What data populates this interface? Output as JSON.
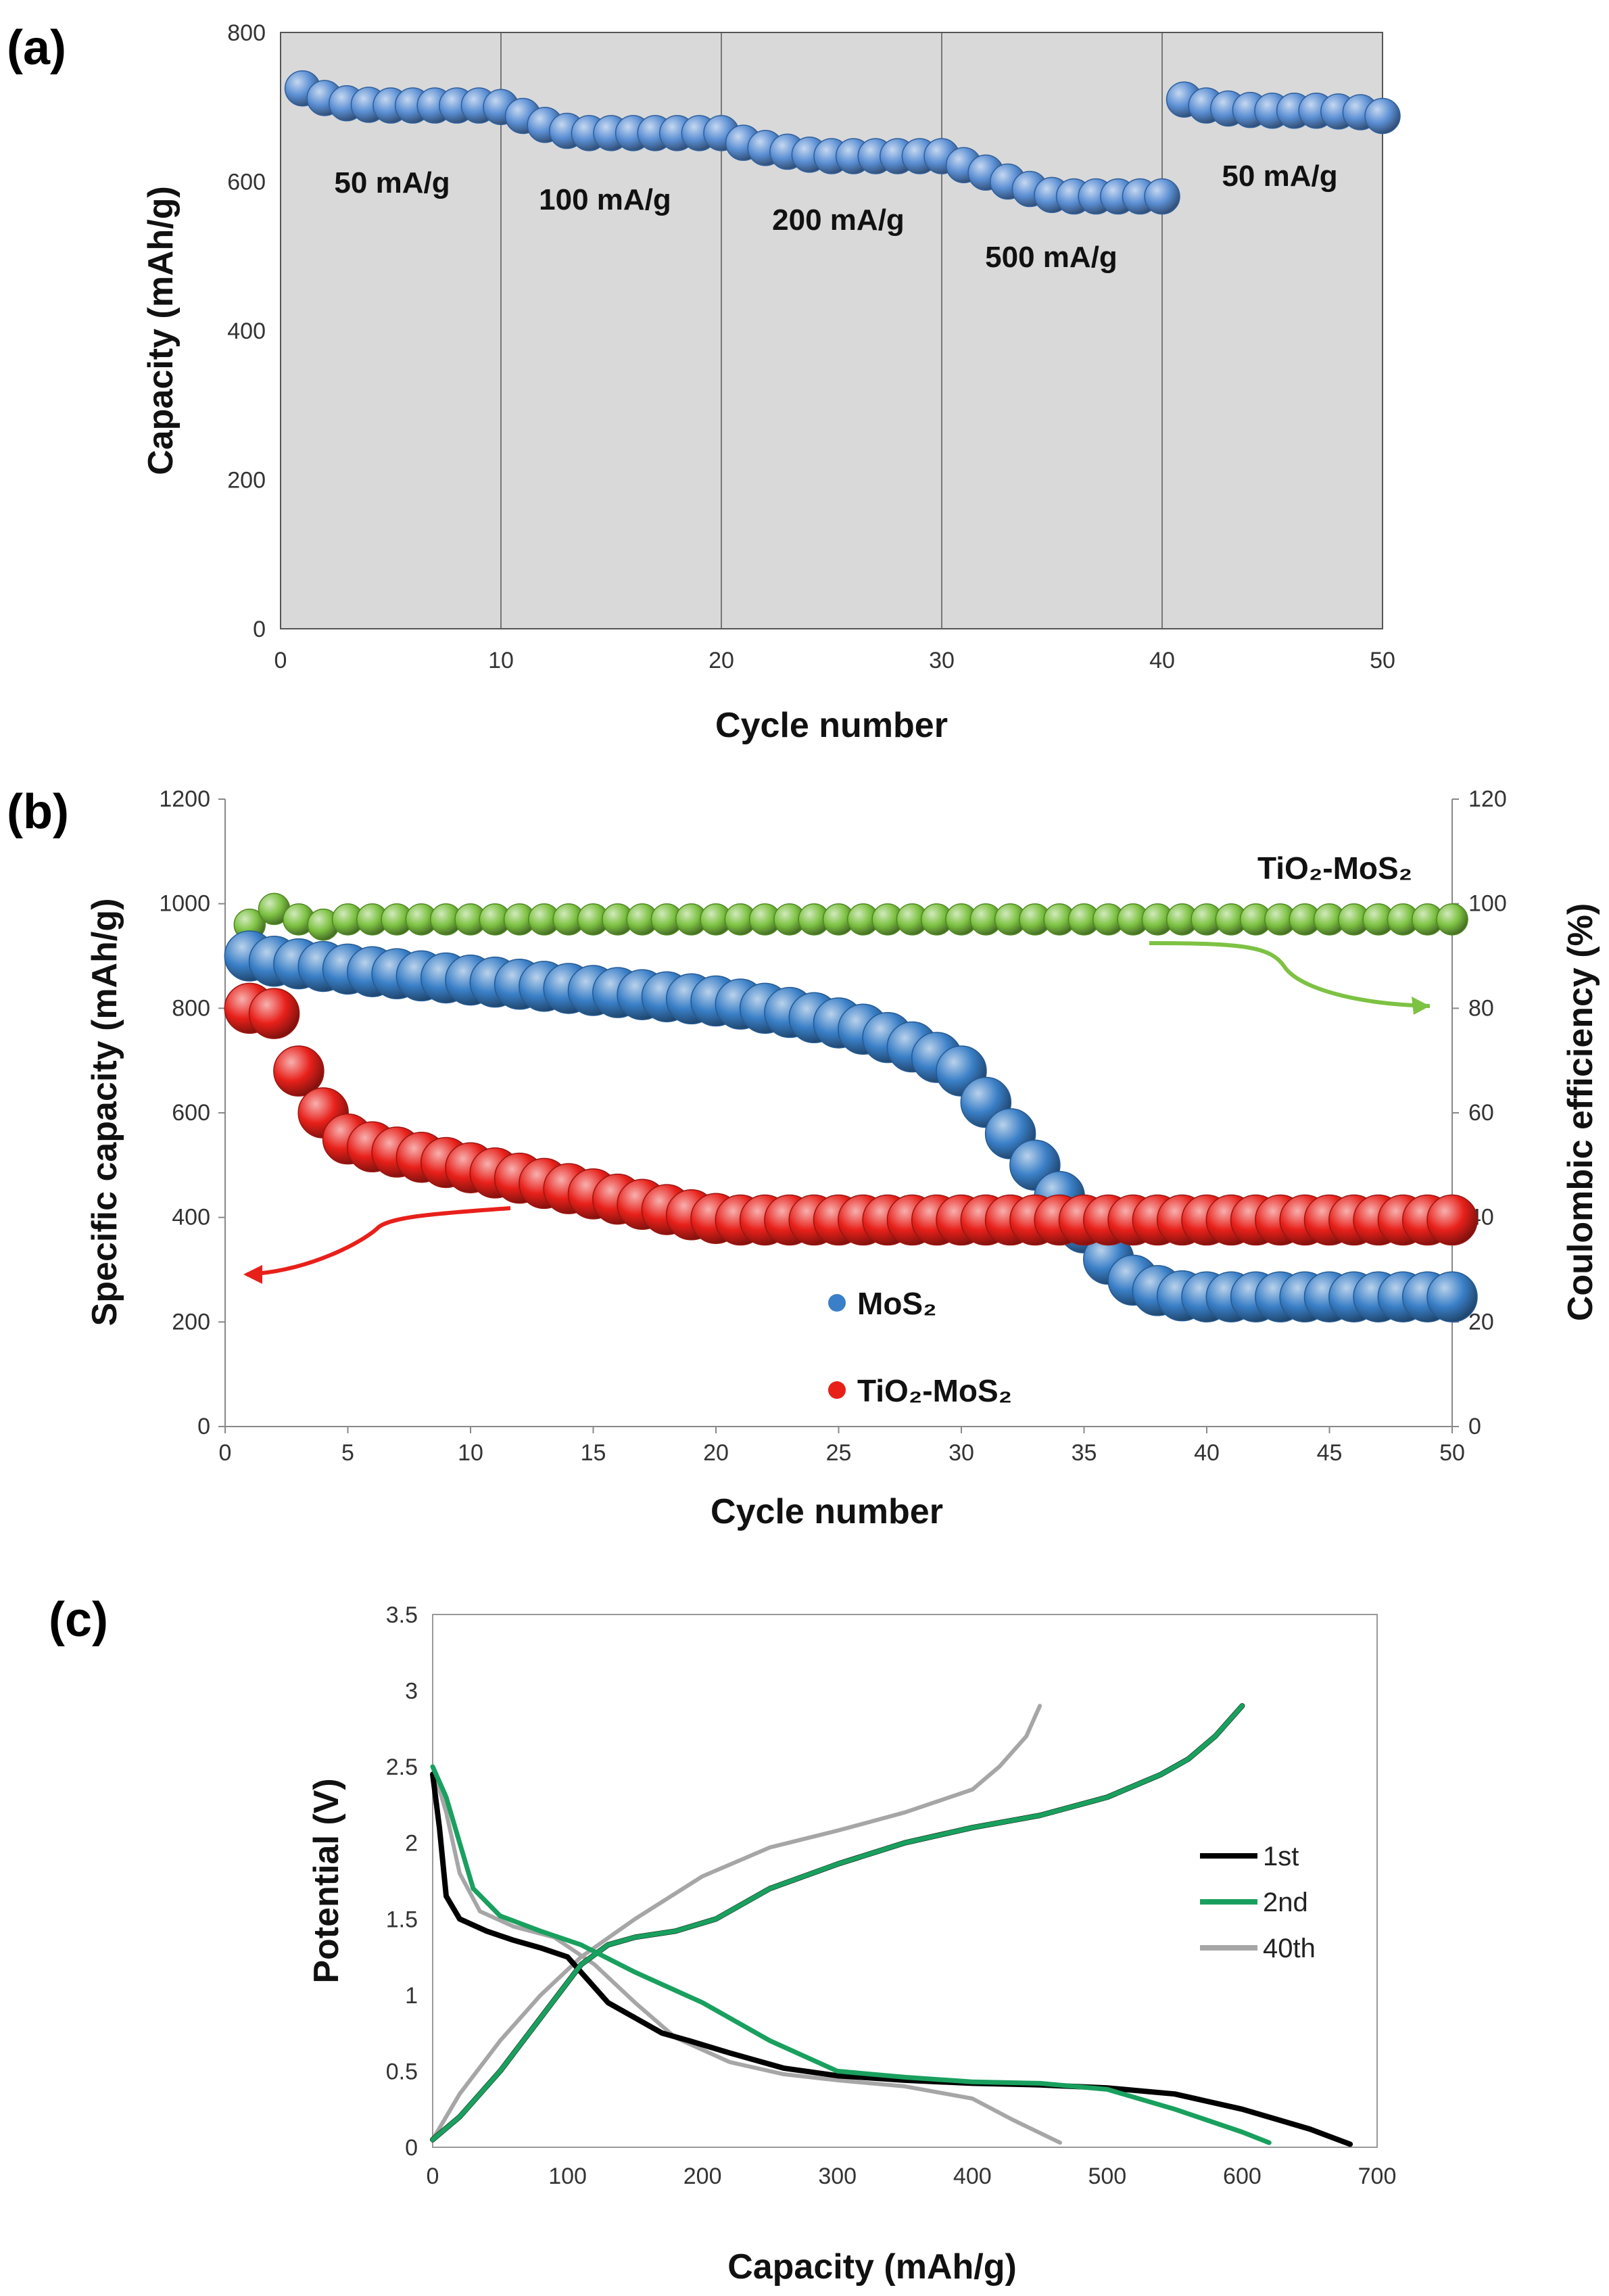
{
  "chart_data": [
    {
      "panel": "(a)",
      "type": "scatter",
      "xlabel": "Cycle number",
      "ylabel": "Capacity (mAh/g)",
      "xlim": [
        0,
        50
      ],
      "ylim": [
        0,
        800
      ],
      "xticks": [
        "0",
        "10",
        "20",
        "30",
        "40",
        "50"
      ],
      "yticks": [
        "0",
        "200",
        "400",
        "600",
        "800"
      ],
      "background": "#d9d9d9",
      "vertical_lines_at": [
        10,
        20,
        30,
        40
      ],
      "annotations": [
        "50 mA/g",
        "100 mA/g",
        "200 mA/g",
        "500 mA/g",
        "50 mA/g"
      ],
      "series": [
        {
          "color": "#5b8fd4",
          "x": [
            1,
            2,
            3,
            4,
            5,
            6,
            7,
            8,
            9,
            10,
            11,
            12,
            13,
            14,
            15,
            16,
            17,
            18,
            19,
            20,
            21,
            22,
            23,
            24,
            25,
            26,
            27,
            28,
            29,
            30,
            31,
            32,
            33,
            34,
            35,
            36,
            37,
            38,
            39,
            40,
            41,
            42,
            43,
            44,
            45,
            46,
            47,
            48,
            49,
            50
          ],
          "y": [
            725,
            712,
            705,
            703,
            702,
            702,
            702,
            702,
            702,
            700,
            688,
            676,
            668,
            665,
            665,
            665,
            665,
            665,
            665,
            665,
            652,
            645,
            640,
            636,
            634,
            634,
            634,
            634,
            634,
            634,
            622,
            612,
            600,
            590,
            582,
            580,
            580,
            580,
            580,
            580,
            710,
            702,
            698,
            696,
            695,
            695,
            695,
            694,
            693,
            688
          ]
        }
      ]
    },
    {
      "panel": "(b)",
      "type": "scatter",
      "xlabel": "Cycle number",
      "ylabel": "Specific capacity (mAh/g)",
      "ylabel_right": "Coulombic efficiency (%)",
      "xlim": [
        0,
        50
      ],
      "ylim": [
        0,
        1200
      ],
      "ylim_right": [
        0,
        120
      ],
      "xticks": [
        "0",
        "5",
        "10",
        "15",
        "20",
        "25",
        "30",
        "35",
        "40",
        "45",
        "50"
      ],
      "yticks": [
        "0",
        "200",
        "400",
        "600",
        "800",
        "1000",
        "1200"
      ],
      "yticks_right": [
        "0",
        "20",
        "40",
        "60",
        "80",
        "100",
        "120"
      ],
      "annotation": "TiO₂-MoS₂",
      "legend_position": "lower-center",
      "series": [
        {
          "name": "MoS₂",
          "axis": "left",
          "color": "#3a7fc7",
          "x": [
            1,
            2,
            3,
            4,
            5,
            6,
            7,
            8,
            9,
            10,
            11,
            12,
            13,
            14,
            15,
            16,
            17,
            18,
            19,
            20,
            21,
            22,
            23,
            24,
            25,
            26,
            27,
            28,
            29,
            30,
            31,
            32,
            33,
            34,
            35,
            36,
            37,
            38,
            39,
            40,
            41,
            42,
            43,
            44,
            45,
            46,
            47,
            48,
            49,
            50
          ],
          "y": [
            900,
            890,
            885,
            880,
            875,
            870,
            866,
            862,
            858,
            854,
            850,
            846,
            842,
            838,
            834,
            830,
            826,
            822,
            818,
            814,
            808,
            800,
            792,
            782,
            772,
            760,
            744,
            726,
            706,
            680,
            620,
            560,
            500,
            440,
            380,
            320,
            280,
            260,
            250,
            248,
            248,
            248,
            248,
            248,
            248,
            248,
            248,
            248,
            248,
            248
          ]
        },
        {
          "name": "TiO₂-MoS₂",
          "axis": "left",
          "color": "#e8201a",
          "x": [
            1,
            2,
            3,
            4,
            5,
            6,
            7,
            8,
            9,
            10,
            11,
            12,
            13,
            14,
            15,
            16,
            17,
            18,
            19,
            20,
            21,
            22,
            23,
            24,
            25,
            26,
            27,
            28,
            29,
            30,
            31,
            32,
            33,
            34,
            35,
            36,
            37,
            38,
            39,
            40,
            41,
            42,
            43,
            44,
            45,
            46,
            47,
            48,
            49,
            50
          ],
          "y": [
            800,
            790,
            680,
            600,
            550,
            535,
            525,
            515,
            505,
            495,
            485,
            475,
            465,
            455,
            445,
            435,
            425,
            415,
            405,
            398,
            395,
            395,
            395,
            395,
            395,
            395,
            395,
            395,
            395,
            395,
            395,
            395,
            395,
            395,
            395,
            395,
            395,
            395,
            395,
            395,
            395,
            395,
            395,
            395,
            395,
            395,
            395,
            395,
            395,
            395
          ]
        },
        {
          "axis": "right",
          "color": "#7dc243",
          "x": [
            1,
            2,
            3,
            4,
            5,
            6,
            7,
            8,
            9,
            10,
            11,
            12,
            13,
            14,
            15,
            16,
            17,
            18,
            19,
            20,
            21,
            22,
            23,
            24,
            25,
            26,
            27,
            28,
            29,
            30,
            31,
            32,
            33,
            34,
            35,
            36,
            37,
            38,
            39,
            40,
            41,
            42,
            43,
            44,
            45,
            46,
            47,
            48,
            49,
            50
          ],
          "y": [
            96,
            99,
            97,
            96,
            97,
            97,
            97,
            97,
            97,
            97,
            97,
            97,
            97,
            97,
            97,
            97,
            97,
            97,
            97,
            97,
            97,
            97,
            97,
            97,
            97,
            97,
            97,
            97,
            97,
            97,
            97,
            97,
            97,
            97,
            97,
            97,
            97,
            97,
            97,
            97,
            97,
            97,
            97,
            97,
            97,
            97,
            97,
            97,
            97,
            97
          ]
        }
      ]
    },
    {
      "panel": "(c)",
      "type": "line",
      "xlabel": "Capacity (mAh/g)",
      "ylabel": "Potential (V)",
      "xlim": [
        0,
        700
      ],
      "ylim": [
        0,
        3.5
      ],
      "xticks": [
        "0",
        "100",
        "200",
        "300",
        "400",
        "500",
        "600",
        "700"
      ],
      "yticks": [
        "0",
        "0.5",
        "1",
        "1.5",
        "2",
        "2.5",
        "3",
        "3.5"
      ],
      "legend_position": "right",
      "series": [
        {
          "name": "1st",
          "color": "#000000",
          "discharge": [
            [
              0,
              2.45
            ],
            [
              5,
              2.1
            ],
            [
              10,
              1.65
            ],
            [
              20,
              1.5
            ],
            [
              40,
              1.42
            ],
            [
              60,
              1.36
            ],
            [
              80,
              1.31
            ],
            [
              100,
              1.25
            ],
            [
              110,
              1.15
            ],
            [
              130,
              0.95
            ],
            [
              150,
              0.85
            ],
            [
              170,
              0.75
            ],
            [
              190,
              0.7
            ],
            [
              220,
              0.62
            ],
            [
              260,
              0.52
            ],
            [
              300,
              0.47
            ],
            [
              350,
              0.44
            ],
            [
              400,
              0.42
            ],
            [
              450,
              0.41
            ],
            [
              500,
              0.39
            ],
            [
              550,
              0.35
            ],
            [
              600,
              0.25
            ],
            [
              650,
              0.12
            ],
            [
              680,
              0.02
            ]
          ],
          "charge": [
            [
              0,
              0.05
            ],
            [
              20,
              0.2
            ],
            [
              50,
              0.5
            ],
            [
              80,
              0.85
            ],
            [
              110,
              1.2
            ],
            [
              130,
              1.33
            ],
            [
              150,
              1.38
            ],
            [
              180,
              1.42
            ],
            [
              210,
              1.5
            ],
            [
              250,
              1.7
            ],
            [
              300,
              1.86
            ],
            [
              350,
              2.0
            ],
            [
              400,
              2.1
            ],
            [
              450,
              2.18
            ],
            [
              500,
              2.3
            ],
            [
              540,
              2.45
            ],
            [
              560,
              2.55
            ],
            [
              580,
              2.7
            ],
            [
              600,
              2.9
            ]
          ]
        },
        {
          "name": "2nd",
          "color": "#19a05e",
          "discharge": [
            [
              0,
              2.5
            ],
            [
              10,
              2.3
            ],
            [
              20,
              2.0
            ],
            [
              30,
              1.7
            ],
            [
              50,
              1.52
            ],
            [
              80,
              1.42
            ],
            [
              110,
              1.33
            ],
            [
              150,
              1.15
            ],
            [
              200,
              0.95
            ],
            [
              250,
              0.7
            ],
            [
              300,
              0.5
            ],
            [
              350,
              0.46
            ],
            [
              400,
              0.43
            ],
            [
              450,
              0.42
            ],
            [
              500,
              0.38
            ],
            [
              550,
              0.25
            ],
            [
              600,
              0.1
            ],
            [
              620,
              0.03
            ]
          ],
          "charge": [
            [
              0,
              0.05
            ],
            [
              20,
              0.2
            ],
            [
              50,
              0.5
            ],
            [
              80,
              0.85
            ],
            [
              110,
              1.2
            ],
            [
              130,
              1.33
            ],
            [
              150,
              1.38
            ],
            [
              180,
              1.42
            ],
            [
              210,
              1.5
            ],
            [
              250,
              1.7
            ],
            [
              300,
              1.86
            ],
            [
              350,
              2.0
            ],
            [
              400,
              2.1
            ],
            [
              450,
              2.18
            ],
            [
              500,
              2.3
            ],
            [
              540,
              2.45
            ],
            [
              560,
              2.55
            ],
            [
              580,
              2.7
            ],
            [
              600,
              2.9
            ]
          ]
        },
        {
          "name": "40th",
          "color": "#a6a6a6",
          "discharge": [
            [
              0,
              2.5
            ],
            [
              10,
              2.2
            ],
            [
              20,
              1.8
            ],
            [
              35,
              1.55
            ],
            [
              60,
              1.45
            ],
            [
              90,
              1.38
            ],
            [
              120,
              1.2
            ],
            [
              150,
              0.95
            ],
            [
              180,
              0.72
            ],
            [
              220,
              0.56
            ],
            [
              260,
              0.48
            ],
            [
              300,
              0.44
            ],
            [
              350,
              0.4
            ],
            [
              400,
              0.32
            ],
            [
              430,
              0.18
            ],
            [
              465,
              0.03
            ]
          ],
          "charge": [
            [
              0,
              0.05
            ],
            [
              20,
              0.35
            ],
            [
              50,
              0.7
            ],
            [
              80,
              1.0
            ],
            [
              110,
              1.25
            ],
            [
              150,
              1.5
            ],
            [
              200,
              1.78
            ],
            [
              250,
              1.97
            ],
            [
              300,
              2.08
            ],
            [
              350,
              2.2
            ],
            [
              400,
              2.35
            ],
            [
              420,
              2.5
            ],
            [
              440,
              2.7
            ],
            [
              450,
              2.9
            ]
          ]
        }
      ]
    }
  ]
}
